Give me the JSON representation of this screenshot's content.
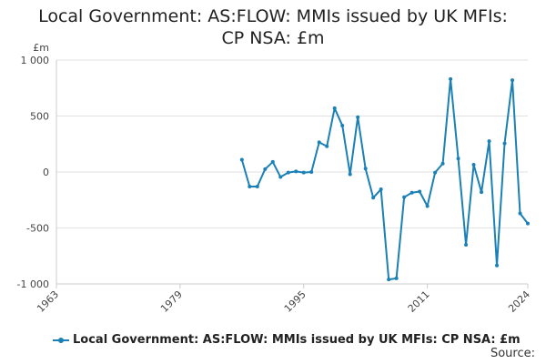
{
  "chart_data": {
    "type": "line",
    "title": "Local Government: AS:FLOW: MMIs issued by UK MFIs: CP NSA: £m",
    "ylabel": "£m",
    "xlabel": "",
    "xlim": [
      1963,
      2024
    ],
    "ylim": [
      -1000,
      1000
    ],
    "x_ticks": [
      1963,
      1979,
      1995,
      2011,
      2024
    ],
    "y_ticks": [
      {
        "value": 1000,
        "label": "1 000"
      },
      {
        "value": 500,
        "label": "500"
      },
      {
        "value": 0,
        "label": "0"
      },
      {
        "value": -500,
        "label": "-500"
      },
      {
        "value": -1000,
        "label": "-1 000"
      }
    ],
    "grid": true,
    "legend_position": "bottom",
    "series": [
      {
        "name": "Local Government: AS:FLOW: MMIs issued by UK MFIs: CP NSA: £m",
        "color": "#1b80b5",
        "x": [
          1987,
          1988,
          1989,
          1990,
          1991,
          1992,
          1993,
          1994,
          1995,
          1996,
          1997,
          1998,
          1999,
          2000,
          2001,
          2002,
          2003,
          2004,
          2005,
          2006,
          2007,
          2008,
          2009,
          2010,
          2011,
          2012,
          2013,
          2014,
          2015,
          2016,
          2017,
          2018,
          2019,
          2020,
          2021,
          2022,
          2023,
          2024
        ],
        "values": [
          110,
          -130,
          -130,
          25,
          90,
          -45,
          -5,
          5,
          -5,
          0,
          265,
          230,
          570,
          415,
          -20,
          490,
          30,
          -230,
          -155,
          -960,
          -950,
          -225,
          -185,
          -175,
          -305,
          -5,
          75,
          830,
          120,
          -650,
          65,
          -180,
          275,
          -835,
          255,
          820,
          -370,
          -460
        ]
      }
    ]
  },
  "legend": {
    "label": "Local Government: AS:FLOW: MMIs issued by UK MFIs: CP NSA: £m"
  },
  "source": {
    "label": "Source:"
  }
}
